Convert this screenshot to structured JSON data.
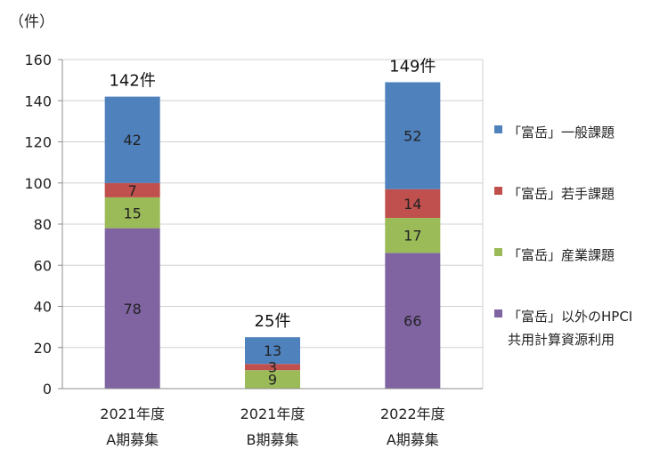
{
  "chart_data": {
    "type": "bar",
    "stacked": true,
    "unit_label": "（件）",
    "categories": [
      [
        "2021年度",
        "A期募集"
      ],
      [
        "2021年度",
        "B期募集"
      ],
      [
        "2022年度",
        "A期募集"
      ]
    ],
    "totals": [
      "142件",
      "25件",
      "149件"
    ],
    "ylim": [
      0,
      160
    ],
    "yticks": [
      0,
      20,
      40,
      60,
      80,
      100,
      120,
      140,
      160
    ],
    "grid": true,
    "legend_position": "right",
    "series": [
      {
        "name": "「富岳」以外のHPCI共用計算資源利用",
        "legend_lines": [
          "「富岳」以外のHPCI",
          "共用計算資源利用"
        ],
        "values": [
          78,
          0,
          66
        ],
        "color": "#8064a2"
      },
      {
        "name": "「富岳」産業課題",
        "legend_lines": [
          "「富岳」産業課題"
        ],
        "values": [
          15,
          9,
          17
        ],
        "color": "#9bbb59"
      },
      {
        "name": "「富岳」若手課題",
        "legend_lines": [
          "「富岳」若手課題"
        ],
        "values": [
          7,
          3,
          14
        ],
        "color": "#c0504d"
      },
      {
        "name": "「富岳」一般課題",
        "legend_lines": [
          "「富岳」一般課題"
        ],
        "values": [
          42,
          13,
          52
        ],
        "color": "#4f81bd"
      }
    ]
  }
}
